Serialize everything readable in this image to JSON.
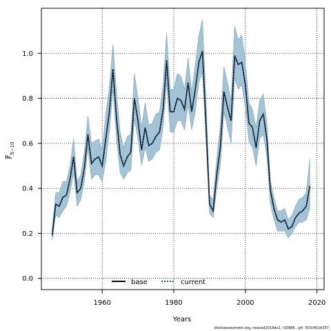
{
  "chart_data": {
    "type": "line",
    "title": "",
    "xlabel": "Years",
    "ylabel": "F̄5−10",
    "ylabel_main": "F",
    "ylabel_sub": "5−10",
    "xlim": [
      1943,
      2022
    ],
    "ylim": [
      -0.05,
      1.2
    ],
    "x_ticks": [
      1960,
      1980,
      2000,
      2020
    ],
    "y_ticks": [
      0.0,
      0.2,
      0.4,
      0.6,
      0.8,
      1.0
    ],
    "y_tick_labels": [
      "0.0",
      "0.2",
      "0.4",
      "0.6",
      "0.8",
      "1.0"
    ],
    "grid": true,
    "legend_position": "bottom",
    "colors": {
      "band": "#a3c4d7",
      "band_edge": "#7f9fb0",
      "base": "#000000",
      "current": "#1f4e79"
    },
    "x": [
      1946,
      1947,
      1948,
      1949,
      1950,
      1951,
      1952,
      1953,
      1954,
      1955,
      1956,
      1957,
      1958,
      1959,
      1960,
      1961,
      1962,
      1963,
      1964,
      1965,
      1966,
      1967,
      1968,
      1969,
      1970,
      1971,
      1972,
      1973,
      1974,
      1975,
      1976,
      1977,
      1978,
      1979,
      1980,
      1981,
      1982,
      1983,
      1984,
      1985,
      1986,
      1987,
      1988,
      1989,
      1990,
      1991,
      1992,
      1993,
      1994,
      1995,
      1996,
      1997,
      1998,
      1999,
      2000,
      2001,
      2002,
      2003,
      2004,
      2005,
      2006,
      2007,
      2008,
      2009,
      2010,
      2011,
      2012,
      2013,
      2014,
      2015,
      2016,
      2017,
      2018
    ],
    "band_upper": [
      0.22,
      0.38,
      0.38,
      0.43,
      0.43,
      0.5,
      0.62,
      0.43,
      0.46,
      0.56,
      0.72,
      0.6,
      0.61,
      0.62,
      0.57,
      0.73,
      0.85,
      1.04,
      0.82,
      0.65,
      0.58,
      0.63,
      0.64,
      0.91,
      0.8,
      0.67,
      0.78,
      0.68,
      0.69,
      0.73,
      0.74,
      0.86,
      1.09,
      0.84,
      0.84,
      0.91,
      0.9,
      0.84,
      0.98,
      0.83,
      0.95,
      1.08,
      1.15,
      0.8,
      0.37,
      0.35,
      0.53,
      0.68,
      0.94,
      0.87,
      0.79,
      1.12,
      1.06,
      1.08,
      0.96,
      0.78,
      0.75,
      0.67,
      0.79,
      0.82,
      0.69,
      0.43,
      0.36,
      0.3,
      0.3,
      0.31,
      0.26,
      0.28,
      0.32,
      0.35,
      0.36,
      0.38,
      0.53
    ],
    "band_lower": [
      0.17,
      0.28,
      0.27,
      0.3,
      0.32,
      0.38,
      0.47,
      0.32,
      0.35,
      0.43,
      0.58,
      0.44,
      0.46,
      0.46,
      0.43,
      0.52,
      0.65,
      0.84,
      0.62,
      0.47,
      0.44,
      0.47,
      0.48,
      0.71,
      0.62,
      0.5,
      0.58,
      0.52,
      0.53,
      0.56,
      0.57,
      0.67,
      0.87,
      0.65,
      0.65,
      0.7,
      0.7,
      0.66,
      0.77,
      0.66,
      0.74,
      0.87,
      0.92,
      0.61,
      0.29,
      0.27,
      0.4,
      0.5,
      0.74,
      0.67,
      0.6,
      0.89,
      0.84,
      0.86,
      0.76,
      0.61,
      0.58,
      0.5,
      0.62,
      0.64,
      0.54,
      0.33,
      0.26,
      0.21,
      0.21,
      0.21,
      0.18,
      0.2,
      0.23,
      0.25,
      0.25,
      0.26,
      0.31
    ],
    "series": [
      {
        "name": "base",
        "values": [
          0.19,
          0.33,
          0.32,
          0.36,
          0.37,
          0.44,
          0.54,
          0.38,
          0.4,
          0.49,
          0.64,
          0.51,
          0.53,
          0.54,
          0.5,
          0.62,
          0.74,
          0.93,
          0.71,
          0.55,
          0.5,
          0.54,
          0.56,
          0.8,
          0.7,
          0.57,
          0.67,
          0.59,
          0.6,
          0.63,
          0.65,
          0.75,
          0.97,
          0.74,
          0.74,
          0.8,
          0.79,
          0.75,
          0.87,
          0.74,
          0.84,
          0.96,
          1.01,
          0.69,
          0.33,
          0.3,
          0.46,
          0.58,
          0.83,
          0.76,
          0.7,
          0.99,
          0.95,
          0.96,
          0.86,
          0.69,
          0.67,
          0.58,
          0.7,
          0.73,
          0.62,
          0.39,
          0.31,
          0.26,
          0.25,
          0.26,
          0.22,
          0.23,
          0.27,
          0.29,
          0.3,
          0.32,
          0.41
        ]
      },
      {
        "name": "current",
        "values": [
          0.19,
          0.33,
          0.32,
          0.36,
          0.37,
          0.44,
          0.54,
          0.38,
          0.4,
          0.49,
          0.64,
          0.51,
          0.53,
          0.54,
          0.5,
          0.62,
          0.74,
          0.93,
          0.71,
          0.55,
          0.5,
          0.54,
          0.56,
          0.8,
          0.7,
          0.57,
          0.67,
          0.59,
          0.6,
          0.63,
          0.65,
          0.75,
          0.97,
          0.74,
          0.74,
          0.8,
          0.79,
          0.75,
          0.87,
          0.74,
          0.84,
          0.96,
          1.01,
          0.69,
          0.33,
          0.3,
          0.46,
          0.58,
          0.83,
          0.76,
          0.7,
          0.99,
          0.95,
          0.96,
          0.86,
          0.69,
          0.67,
          0.58,
          0.7,
          0.73,
          0.62,
          0.39,
          0.31,
          0.26,
          0.25,
          0.26,
          0.22,
          0.23,
          0.27,
          0.29,
          0.3,
          0.32,
          0.41
        ]
      }
    ],
    "legend": [
      "base",
      "current"
    ],
    "footnote": "stockassessment.org, neacod2019dv2, r10986 , git: 503cf91af157"
  }
}
